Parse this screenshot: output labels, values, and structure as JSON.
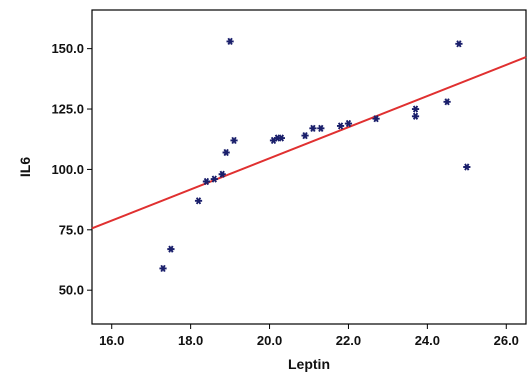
{
  "chart_data": {
    "type": "scatter",
    "xlabel": "Leptin",
    "ylabel": "IL6",
    "xlim": [
      15.5,
      26.5
    ],
    "ylim": [
      36,
      166
    ],
    "x_ticks": [
      "16.0",
      "18.0",
      "20.0",
      "22.0",
      "24.0",
      "26.0"
    ],
    "y_ticks": [
      "50.0",
      "75.0",
      "100.0",
      "125.0",
      "150.0"
    ],
    "grid": false,
    "legend": "none",
    "marker": "asterisk",
    "colors": {
      "points": "#1a1f6b",
      "fit_line": "#e03030",
      "axes": "#000000"
    },
    "series": [
      {
        "x": [
          17.3,
          17.5,
          18.2,
          18.4,
          18.6,
          18.8,
          18.9,
          19.0,
          19.1,
          20.1,
          20.2,
          20.3,
          20.9,
          21.1,
          21.3,
          21.8,
          22.0,
          22.7,
          23.7,
          23.7,
          24.5,
          24.8,
          25.0
        ],
        "y": [
          59,
          67,
          87,
          95,
          96,
          98,
          107,
          153,
          112,
          112,
          113,
          113,
          114,
          117,
          117,
          118,
          119,
          121,
          125,
          122,
          128,
          152,
          101
        ]
      }
    ],
    "fit_line": {
      "x": [
        15.5,
        26.5
      ],
      "y": [
        75.6,
        146.5
      ]
    }
  }
}
